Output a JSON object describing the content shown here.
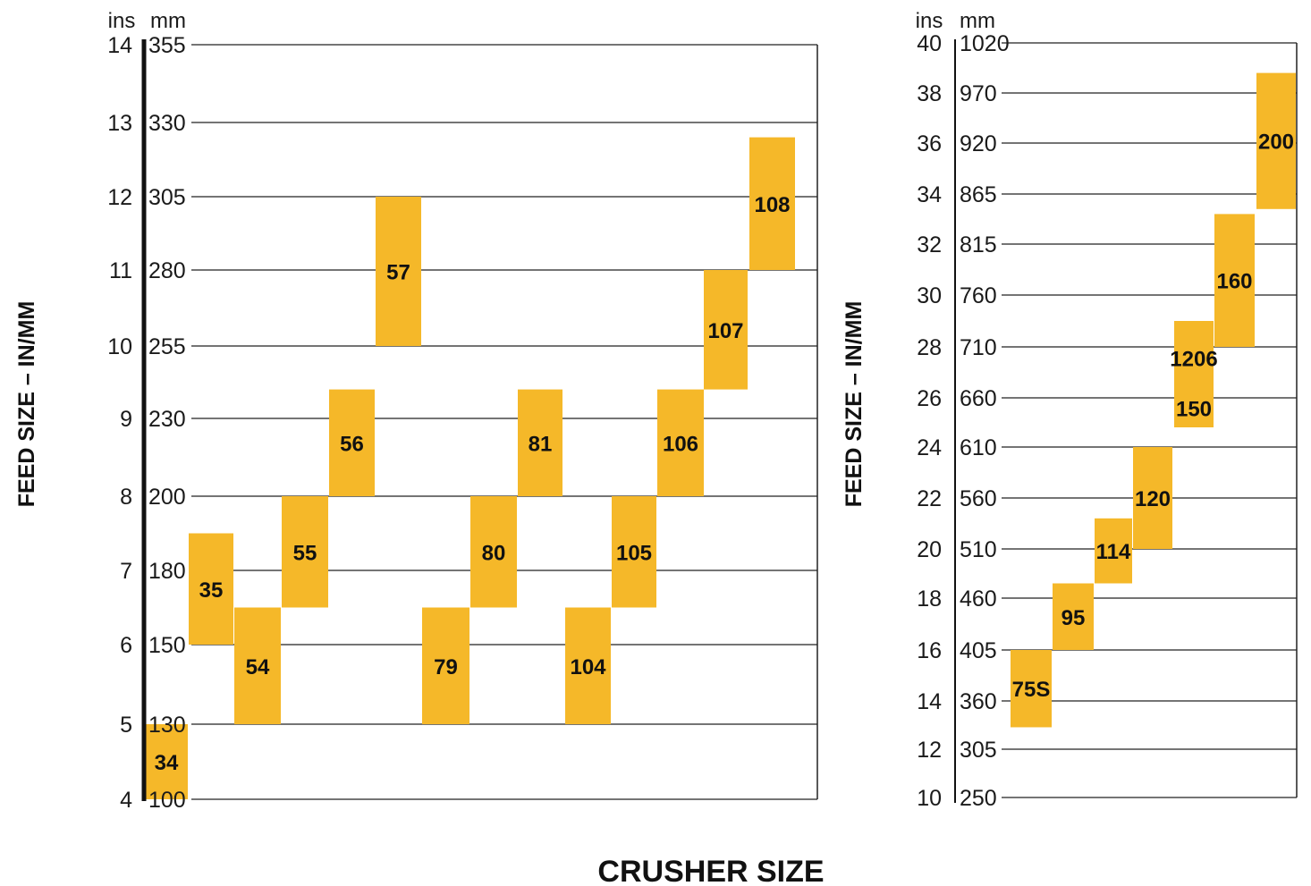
{
  "chart_data": [
    {
      "type": "bar",
      "subtype": "floating-range",
      "title": "",
      "ylabel": "FEED SIZE – IN/MM",
      "unit_labels": {
        "ins": "ins",
        "mm": "mm"
      },
      "ylim_mm": [
        100,
        355
      ],
      "grid": true,
      "y_ticks": [
        {
          "ins": "14",
          "mm": "355"
        },
        {
          "ins": "13",
          "mm": "330"
        },
        {
          "ins": "12",
          "mm": "305"
        },
        {
          "ins": "11",
          "mm": "280"
        },
        {
          "ins": "10",
          "mm": "255"
        },
        {
          "ins": "9",
          "mm": "230"
        },
        {
          "ins": "8",
          "mm": "200"
        },
        {
          "ins": "7",
          "mm": "180"
        },
        {
          "ins": "6",
          "mm": "150"
        },
        {
          "ins": "5",
          "mm": "130"
        },
        {
          "ins": "4",
          "mm": "100"
        }
      ],
      "bars": [
        {
          "label": "34",
          "min_mm": 100,
          "max_mm": 130
        },
        {
          "label": "35",
          "min_mm": 150,
          "max_mm": 190
        },
        {
          "label": "54",
          "min_mm": 130,
          "max_mm": 165
        },
        {
          "label": "55",
          "min_mm": 165,
          "max_mm": 200
        },
        {
          "label": "56",
          "min_mm": 200,
          "max_mm": 240
        },
        {
          "label": "57",
          "min_mm": 255,
          "max_mm": 305
        },
        {
          "label": "79",
          "min_mm": 130,
          "max_mm": 165
        },
        {
          "label": "80",
          "min_mm": 165,
          "max_mm": 200
        },
        {
          "label": "81",
          "min_mm": 200,
          "max_mm": 240
        },
        {
          "label": "104",
          "min_mm": 130,
          "max_mm": 165
        },
        {
          "label": "105",
          "min_mm": 165,
          "max_mm": 200
        },
        {
          "label": "106",
          "min_mm": 200,
          "max_mm": 240
        },
        {
          "label": "107",
          "min_mm": 240,
          "max_mm": 280
        },
        {
          "label": "108",
          "min_mm": 280,
          "max_mm": 325
        }
      ]
    },
    {
      "type": "bar",
      "subtype": "floating-range",
      "title": "",
      "ylabel": "FEED SIZE – IN/MM",
      "unit_labels": {
        "ins": "ins",
        "mm": "mm"
      },
      "ylim_mm": [
        250,
        1020
      ],
      "grid": true,
      "y_ticks": [
        {
          "ins": "40",
          "mm": "1020"
        },
        {
          "ins": "38",
          "mm": "970"
        },
        {
          "ins": "36",
          "mm": "920"
        },
        {
          "ins": "34",
          "mm": "865"
        },
        {
          "ins": "32",
          "mm": "815"
        },
        {
          "ins": "30",
          "mm": "760"
        },
        {
          "ins": "28",
          "mm": "710"
        },
        {
          "ins": "26",
          "mm": "660"
        },
        {
          "ins": "24",
          "mm": "610"
        },
        {
          "ins": "22",
          "mm": "560"
        },
        {
          "ins": "20",
          "mm": "510"
        },
        {
          "ins": "18",
          "mm": "460"
        },
        {
          "ins": "16",
          "mm": "405"
        },
        {
          "ins": "14",
          "mm": "360"
        },
        {
          "ins": "12",
          "mm": "305"
        },
        {
          "ins": "10",
          "mm": "250"
        }
      ],
      "bars": [
        {
          "label": "75S",
          "min_mm": 330,
          "max_mm": 405
        },
        {
          "label": "95",
          "min_mm": 405,
          "max_mm": 475
        },
        {
          "label": "114",
          "min_mm": 475,
          "max_mm": 540
        },
        {
          "label": "120",
          "min_mm": 510,
          "max_mm": 610
        },
        {
          "label": "1206",
          "min_mm": 630,
          "max_mm": 735,
          "second_label": "150"
        },
        {
          "label": "160",
          "min_mm": 710,
          "max_mm": 845
        },
        {
          "label": "200",
          "min_mm": 850,
          "max_mm": 990
        }
      ]
    }
  ],
  "xlabel": "CRUSHER SIZE",
  "colors": {
    "bar": "#f5b829",
    "bar_edge": "#e6a415",
    "grid": "#222222",
    "axis": "#111111"
  }
}
